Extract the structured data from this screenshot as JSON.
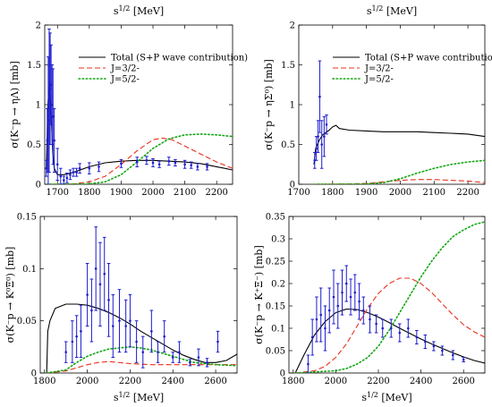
{
  "chart_data": [
    {
      "type": "line",
      "id": "eta-lambda",
      "top_label": "s^{1/2} [MeV]",
      "xlabel": "",
      "ylabel": "σ(K⁻p → ηΛ) [mb]",
      "xlim": [
        1660,
        2250
      ],
      "ylim": [
        0,
        2
      ],
      "xticks": [
        1700,
        1800,
        1900,
        2000,
        2100,
        2200
      ],
      "yticks": [
        0,
        0.5,
        1,
        1.5,
        2
      ],
      "ytick_labels": [
        "0",
        "0.5",
        "1",
        "1.5",
        "2"
      ],
      "legend": true,
      "series": [
        {
          "name": "Total (S+P wave contribution)",
          "style": "solid",
          "color": "#000000",
          "x": [
            1665,
            1670,
            1675,
            1680,
            1685,
            1690,
            1700,
            1720,
            1750,
            1800,
            1850,
            1900,
            1950,
            2000,
            2050,
            2100,
            2150,
            2200,
            2250
          ],
          "y": [
            0.2,
            1.0,
            1.3,
            0.9,
            0.4,
            0.2,
            0.12,
            0.12,
            0.15,
            0.22,
            0.27,
            0.29,
            0.3,
            0.3,
            0.29,
            0.28,
            0.26,
            0.22,
            0.18
          ]
        },
        {
          "name": "J=3/2-",
          "style": "dash",
          "color": "#e8311c",
          "x": [
            1665,
            1750,
            1800,
            1850,
            1900,
            1950,
            2000,
            2030,
            2060,
            2100,
            2150,
            2200,
            2250
          ],
          "y": [
            0,
            0.005,
            0.03,
            0.1,
            0.25,
            0.42,
            0.56,
            0.58,
            0.56,
            0.48,
            0.38,
            0.28,
            0.2
          ]
        },
        {
          "name": "J=5/2-",
          "style": "dot",
          "color": "#13a613",
          "x": [
            1665,
            1800,
            1850,
            1900,
            1950,
            2000,
            2050,
            2100,
            2150,
            2200,
            2250
          ],
          "y": [
            0,
            0.005,
            0.03,
            0.12,
            0.28,
            0.45,
            0.57,
            0.62,
            0.63,
            0.62,
            0.6
          ]
        }
      ],
      "data_points": {
        "color": "#1c1cd0",
        "x": [
          1665,
          1668,
          1671,
          1674,
          1677,
          1680,
          1683,
          1686,
          1690,
          1700,
          1710,
          1720,
          1730,
          1740,
          1750,
          1760,
          1770,
          1800,
          1830,
          1900,
          1950,
          1980,
          2000,
          2020,
          2050,
          2070,
          2100,
          2120,
          2140,
          2170
        ],
        "y": [
          0.2,
          0.55,
          0.8,
          1.05,
          1.2,
          1.25,
          1.0,
          0.85,
          0.55,
          0.25,
          0.1,
          0.05,
          0.08,
          0.12,
          0.15,
          0.15,
          0.2,
          0.2,
          0.22,
          0.26,
          0.28,
          0.3,
          0.27,
          0.25,
          0.29,
          0.27,
          0.25,
          0.24,
          0.22,
          0.22
        ],
        "err": [
          0.1,
          0.4,
          0.8,
          0.9,
          0.7,
          0.5,
          0.5,
          0.6,
          0.4,
          0.2,
          0.1,
          0.05,
          0.06,
          0.06,
          0.05,
          0.05,
          0.06,
          0.07,
          0.06,
          0.05,
          0.06,
          0.05,
          0.05,
          0.04,
          0.05,
          0.04,
          0.05,
          0.04,
          0.04,
          0.04
        ]
      }
    },
    {
      "type": "line",
      "id": "eta-sigma",
      "top_label": "s^{1/2} [MeV]",
      "xlabel": "",
      "ylabel": "σ(K⁻p → ηΣ⁰) [mb]",
      "xlim": [
        1700,
        2250
      ],
      "ylim": [
        0,
        2
      ],
      "xticks": [
        1700,
        1800,
        1900,
        2000,
        2100,
        2200
      ],
      "yticks": [
        0,
        0.5,
        1,
        1.5,
        2
      ],
      "ytick_labels": [
        "0",
        "0.5",
        "1",
        "1.5",
        "2"
      ],
      "legend": true,
      "series": [
        {
          "name": "Total (S+P wave contribution)",
          "style": "solid",
          "color": "#000000",
          "x": [
            1745,
            1750,
            1760,
            1770,
            1790,
            1800,
            1810,
            1820,
            1850,
            1900,
            1950,
            2000,
            2050,
            2100,
            2150,
            2200,
            2250
          ],
          "y": [
            0.25,
            0.45,
            0.55,
            0.62,
            0.68,
            0.72,
            0.74,
            0.7,
            0.68,
            0.67,
            0.66,
            0.66,
            0.66,
            0.65,
            0.64,
            0.63,
            0.6
          ]
        },
        {
          "name": "J=3/2-",
          "style": "dash",
          "color": "#e8311c",
          "x": [
            1745,
            1850,
            1900,
            1950,
            2000,
            2050,
            2100,
            2150,
            2200,
            2250
          ],
          "y": [
            0,
            0.005,
            0.01,
            0.03,
            0.05,
            0.06,
            0.06,
            0.05,
            0.04,
            0.02
          ]
        },
        {
          "name": "J=5/2-",
          "style": "dot",
          "color": "#13a613",
          "x": [
            1745,
            1900,
            1950,
            2000,
            2050,
            2100,
            2150,
            2200,
            2250
          ],
          "y": [
            0,
            0.003,
            0.02,
            0.07,
            0.14,
            0.2,
            0.25,
            0.28,
            0.3
          ]
        }
      ],
      "data_points": {
        "color": "#1c1cd0",
        "x": [
          1747,
          1752,
          1757,
          1762,
          1768,
          1775,
          1782
        ],
        "y": [
          0.3,
          0.45,
          0.6,
          1.1,
          0.5,
          0.6,
          0.75
        ],
        "err": [
          0.1,
          0.15,
          0.2,
          0.45,
          0.3,
          0.25,
          0.12
        ]
      }
    },
    {
      "type": "line",
      "id": "k0-xi-minus",
      "top_label": "",
      "xlabel": "s^{1/2} [MeV]",
      "ylabel": "σ(K⁻p → K⁰Ξ⁰) [mb]",
      "xlim": [
        1780,
        2700
      ],
      "ylim": [
        0,
        0.15
      ],
      "xticks": [
        1800,
        2000,
        2200,
        2400,
        2600
      ],
      "yticks": [
        0,
        0.05,
        0.1,
        0.15
      ],
      "ytick_labels": [
        "0",
        "0.05",
        "0.1",
        "0.15"
      ],
      "legend": false,
      "series": [
        {
          "name": "",
          "style": "solid",
          "color": "#000000",
          "x": [
            1810,
            1815,
            1825,
            1850,
            1900,
            1950,
            2000,
            2050,
            2100,
            2150,
            2200,
            2250,
            2300,
            2350,
            2400,
            2450,
            2500,
            2550,
            2600,
            2650,
            2700
          ],
          "y": [
            0,
            0.04,
            0.05,
            0.062,
            0.066,
            0.066,
            0.065,
            0.062,
            0.058,
            0.053,
            0.047,
            0.04,
            0.034,
            0.028,
            0.022,
            0.017,
            0.013,
            0.01,
            0.01,
            0.012,
            0.018
          ]
        },
        {
          "name": "",
          "style": "dash",
          "color": "#e8311c",
          "x": [
            1810,
            1900,
            1950,
            2000,
            2050,
            2100,
            2150,
            2200,
            2300,
            2400,
            2500,
            2600,
            2700
          ],
          "y": [
            0,
            0.002,
            0.005,
            0.008,
            0.01,
            0.011,
            0.01,
            0.009,
            0.008,
            0.008,
            0.008,
            0.008,
            0.008
          ]
        },
        {
          "name": "",
          "style": "dot",
          "color": "#13a613",
          "x": [
            1810,
            1900,
            1950,
            2000,
            2050,
            2100,
            2150,
            2200,
            2250,
            2300,
            2350,
            2400,
            2450,
            2500,
            2600,
            2700
          ],
          "y": [
            0,
            0.003,
            0.01,
            0.016,
            0.02,
            0.023,
            0.024,
            0.025,
            0.024,
            0.022,
            0.019,
            0.016,
            0.013,
            0.01,
            0.008,
            0.007
          ]
        }
      ],
      "data_points": {
        "color": "#1c1cd0",
        "x": [
          1900,
          1930,
          1950,
          1970,
          2000,
          2020,
          2040,
          2060,
          2080,
          2100,
          2120,
          2150,
          2180,
          2200,
          2230,
          2260,
          2300,
          2330,
          2360,
          2400,
          2430,
          2480,
          2520,
          2560,
          2610
        ],
        "y": [
          0.02,
          0.03,
          0.035,
          0.04,
          0.075,
          0.06,
          0.1,
          0.085,
          0.095,
          0.07,
          0.045,
          0.05,
          0.045,
          0.05,
          0.03,
          0.02,
          0.04,
          0.02,
          0.035,
          0.015,
          0.02,
          0.01,
          0.015,
          0.01,
          0.03
        ],
        "err": [
          0.01,
          0.02,
          0.02,
          0.025,
          0.03,
          0.03,
          0.04,
          0.04,
          0.035,
          0.035,
          0.03,
          0.03,
          0.025,
          0.025,
          0.02,
          0.015,
          0.02,
          0.01,
          0.015,
          0.005,
          0.01,
          0.003,
          0.008,
          0.004,
          0.01
        ]
      }
    },
    {
      "type": "line",
      "id": "kplus-xi-minus",
      "top_label": "",
      "xlabel": "s^{1/2} [MeV]",
      "ylabel": "σ(K⁻p → K⁺Ξ⁻) [mb]",
      "xlim": [
        1780,
        2700
      ],
      "ylim": [
        0,
        0.35
      ],
      "xticks": [
        1800,
        2000,
        2200,
        2400,
        2600
      ],
      "yticks": [
        0,
        0.05,
        0.1,
        0.15,
        0.2,
        0.25,
        0.3,
        0.35
      ],
      "ytick_labels": [
        "0",
        "0.05",
        "0.1",
        "0.15",
        "0.2",
        "0.25",
        "0.3",
        "0.35"
      ],
      "legend": false,
      "series": [
        {
          "name": "",
          "style": "solid",
          "color": "#000000",
          "x": [
            1810,
            1850,
            1900,
            1950,
            2000,
            2050,
            2100,
            2150,
            2200,
            2250,
            2300,
            2350,
            2400,
            2450,
            2500,
            2550,
            2600,
            2650,
            2700
          ],
          "y": [
            0,
            0.04,
            0.085,
            0.115,
            0.135,
            0.143,
            0.142,
            0.135,
            0.125,
            0.113,
            0.1,
            0.088,
            0.076,
            0.065,
            0.055,
            0.045,
            0.036,
            0.028,
            0.022
          ]
        },
        {
          "name": "",
          "style": "dash",
          "color": "#e8311c",
          "x": [
            1810,
            1900,
            1950,
            2000,
            2050,
            2100,
            2150,
            2200,
            2250,
            2300,
            2350,
            2400,
            2450,
            2500,
            2550,
            2600,
            2650,
            2700
          ],
          "y": [
            0,
            0.005,
            0.015,
            0.035,
            0.065,
            0.105,
            0.145,
            0.178,
            0.2,
            0.212,
            0.212,
            0.2,
            0.18,
            0.155,
            0.13,
            0.108,
            0.092,
            0.08
          ]
        },
        {
          "name": "",
          "style": "dot",
          "color": "#13a613",
          "x": [
            1810,
            2000,
            2050,
            2100,
            2150,
            2200,
            2250,
            2300,
            2350,
            2400,
            2450,
            2500,
            2550,
            2600,
            2650,
            2700
          ],
          "y": [
            0,
            0.005,
            0.01,
            0.02,
            0.035,
            0.06,
            0.095,
            0.135,
            0.175,
            0.215,
            0.25,
            0.28,
            0.305,
            0.32,
            0.332,
            0.338
          ]
        }
      ],
      "data_points": {
        "color": "#1c1cd0",
        "x": [
          1870,
          1890,
          1910,
          1930,
          1950,
          1970,
          1990,
          2010,
          2030,
          2050,
          2070,
          2090,
          2110,
          2130,
          2160,
          2190,
          2220,
          2260,
          2300,
          2340,
          2380,
          2420,
          2460,
          2500,
          2550,
          2600
        ],
        "y": [
          0.02,
          0.08,
          0.12,
          0.13,
          0.1,
          0.14,
          0.17,
          0.15,
          0.18,
          0.2,
          0.17,
          0.18,
          0.16,
          0.14,
          0.12,
          0.11,
          0.1,
          0.1,
          0.09,
          0.1,
          0.08,
          0.07,
          0.06,
          0.05,
          0.04,
          0.03
        ],
        "err": [
          0.02,
          0.04,
          0.05,
          0.06,
          0.05,
          0.05,
          0.06,
          0.05,
          0.05,
          0.04,
          0.04,
          0.04,
          0.04,
          0.03,
          0.03,
          0.02,
          0.02,
          0.02,
          0.02,
          0.02,
          0.015,
          0.015,
          0.01,
          0.01,
          0.01,
          0.005
        ]
      }
    }
  ]
}
